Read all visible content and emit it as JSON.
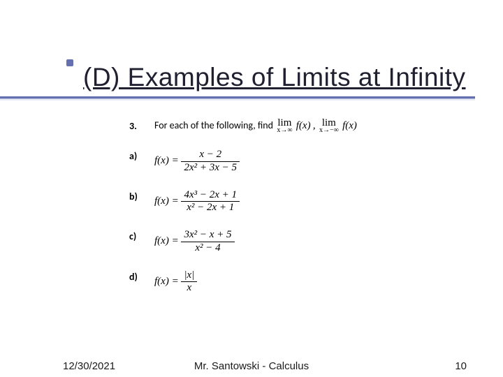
{
  "accent": "#6470b0",
  "title": "(D) Examples of Limits at Infinity",
  "prompt": {
    "num": "3.",
    "text": "For each of the following, find",
    "lim1_sub": "x→∞",
    "lim2_sub": "x→−∞",
    "fx": "f(x)",
    "comma": ","
  },
  "items": [
    {
      "label": "a)",
      "lhs": "f(x) =",
      "num": "x − 2",
      "den": "2x² + 3x − 5"
    },
    {
      "label": "b)",
      "lhs": "f(x) =",
      "num": "4x³ − 2x + 1",
      "den": "x² − 2x + 1"
    },
    {
      "label": "c)",
      "lhs": "f(x) =",
      "num": "3x² − x + 5",
      "den": "x² − 4"
    },
    {
      "label": "d)",
      "lhs": "f(x) =",
      "num": "|x|",
      "den": "x"
    }
  ],
  "footer": {
    "date": "12/30/2021",
    "author": "Mr. Santowski - Calculus",
    "page": "10"
  }
}
